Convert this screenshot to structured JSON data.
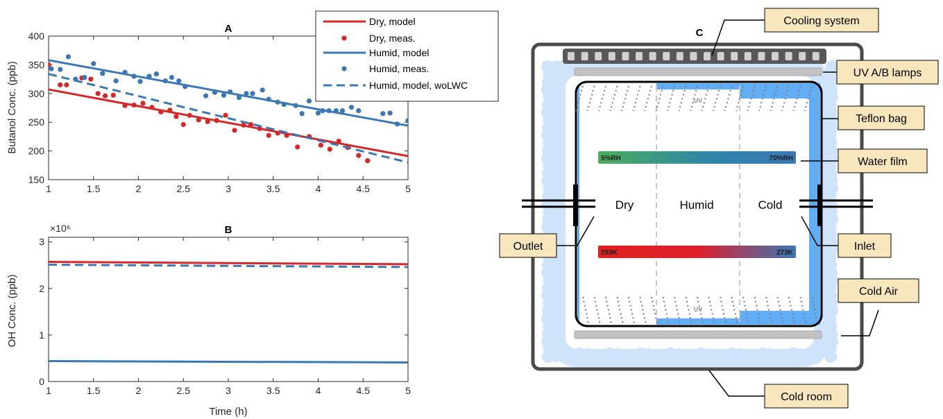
{
  "chart_data": [
    {
      "type": "line",
      "title": "A",
      "xlabel": "",
      "ylabel": "Butanol Conc. (ppb)",
      "xlim": [
        1,
        5
      ],
      "ylim": [
        150,
        400
      ],
      "xticks": [
        "1",
        "1.5",
        "2",
        "2.5",
        "3",
        "3.5",
        "4",
        "4.5",
        "5"
      ],
      "yticks": [
        "150",
        "200",
        "250",
        "300",
        "350",
        "400"
      ],
      "grid": false,
      "legend_position": "top-right",
      "series": [
        {
          "name": "Dry, model",
          "kind": "line",
          "style": "solid",
          "color": "#d62728",
          "x": [
            1,
            5
          ],
          "y": [
            307,
            191
          ]
        },
        {
          "name": "Dry, meas.",
          "kind": "scatter",
          "color": "#d62728",
          "x": [
            1.0,
            1.13,
            1.2,
            1.37,
            1.47,
            1.55,
            1.63,
            1.72,
            1.85,
            1.95,
            2.05,
            2.15,
            2.25,
            2.35,
            2.42,
            2.5,
            2.57,
            2.67,
            2.77,
            2.87,
            2.97,
            3.07,
            3.17,
            3.25,
            3.35,
            3.45,
            3.55,
            3.65,
            3.77,
            3.9,
            4.03,
            4.13,
            4.23,
            4.33,
            4.45,
            4.55
          ],
          "y": [
            350,
            315,
            315,
            327,
            325,
            300,
            296,
            297,
            279,
            280,
            283,
            276,
            268,
            271,
            260,
            246,
            262,
            254,
            251,
            253,
            262,
            236,
            245,
            246,
            239,
            227,
            231,
            227,
            207,
            225,
            210,
            203,
            217,
            206,
            192,
            183
          ]
        },
        {
          "name": "Humid, model",
          "kind": "line",
          "style": "solid",
          "color": "#3a78b5",
          "x": [
            1,
            5
          ],
          "y": [
            358,
            244
          ]
        },
        {
          "name": "Humid, meas.",
          "kind": "scatter",
          "color": "#3a78b5",
          "x": [
            1.03,
            1.13,
            1.22,
            1.3,
            1.4,
            1.5,
            1.6,
            1.75,
            1.85,
            1.95,
            2.02,
            2.12,
            2.2,
            2.3,
            2.37,
            2.45,
            2.52,
            2.75,
            2.85,
            2.95,
            3.02,
            3.12,
            3.2,
            3.27,
            3.38,
            3.45,
            3.55,
            3.62,
            3.75,
            3.82,
            3.9,
            4.0,
            4.05,
            4.12,
            4.2,
            4.27,
            4.37,
            4.45,
            4.72,
            4.8,
            4.88,
            5.0
          ],
          "y": [
            343,
            342,
            364,
            325,
            328,
            352,
            335,
            322,
            337,
            330,
            321,
            330,
            334,
            322,
            328,
            322,
            312,
            296,
            302,
            297,
            303,
            293,
            300,
            300,
            306,
            290,
            285,
            281,
            279,
            265,
            287,
            266,
            270,
            270,
            270,
            270,
            276,
            270,
            265,
            266,
            247,
            253
          ]
        },
        {
          "name": "Humid, model, woLWC",
          "kind": "line",
          "style": "dashed",
          "color": "#3a78b5",
          "x": [
            1,
            5
          ],
          "y": [
            334,
            180
          ]
        }
      ]
    },
    {
      "type": "line",
      "title": "B",
      "xlabel": "Time (h)",
      "ylabel": "OH Conc. (ppb)",
      "y_multiplier": "×10⁶",
      "xlim": [
        1,
        5
      ],
      "ylim": [
        0,
        3.1
      ],
      "xticks": [
        "1",
        "1.5",
        "2",
        "2.5",
        "3",
        "3.5",
        "4",
        "4.5",
        "5"
      ],
      "yticks": [
        "0",
        "1",
        "2",
        "3"
      ],
      "grid": false,
      "series": [
        {
          "kind": "line",
          "style": "solid",
          "color": "#d62728",
          "x": [
            1,
            5
          ],
          "y": [
            2.57,
            2.52
          ]
        },
        {
          "kind": "line",
          "style": "dashed",
          "color": "#3a78b5",
          "x": [
            1,
            5
          ],
          "y": [
            2.51,
            2.46
          ]
        },
        {
          "kind": "line",
          "style": "solid",
          "color": "#3a78b5",
          "x": [
            1,
            5
          ],
          "y": [
            0.44,
            0.41
          ]
        }
      ]
    }
  ],
  "diagram": {
    "title": "C",
    "callouts": [
      "Cooling system",
      "UV A/B lamps",
      "Teflon bag",
      "Water film",
      "Inlet",
      "Cold Air",
      "Cold room",
      "Outlet"
    ],
    "zone_labels": [
      "Dry",
      "Humid",
      "Cold"
    ],
    "uv_labels": [
      "UV",
      "UV"
    ],
    "humidity_bar": {
      "left": "5%RH",
      "right": "70%RH"
    },
    "temperature_bar": {
      "left": "293K",
      "right": "273K"
    },
    "colors": {
      "bag": "#62aef5",
      "cold_air": "#cfe4fa",
      "callout_fill": "#f8e7bc",
      "red": "#e02020",
      "blue": "#3a78b5",
      "green": "#4cae5a"
    }
  }
}
